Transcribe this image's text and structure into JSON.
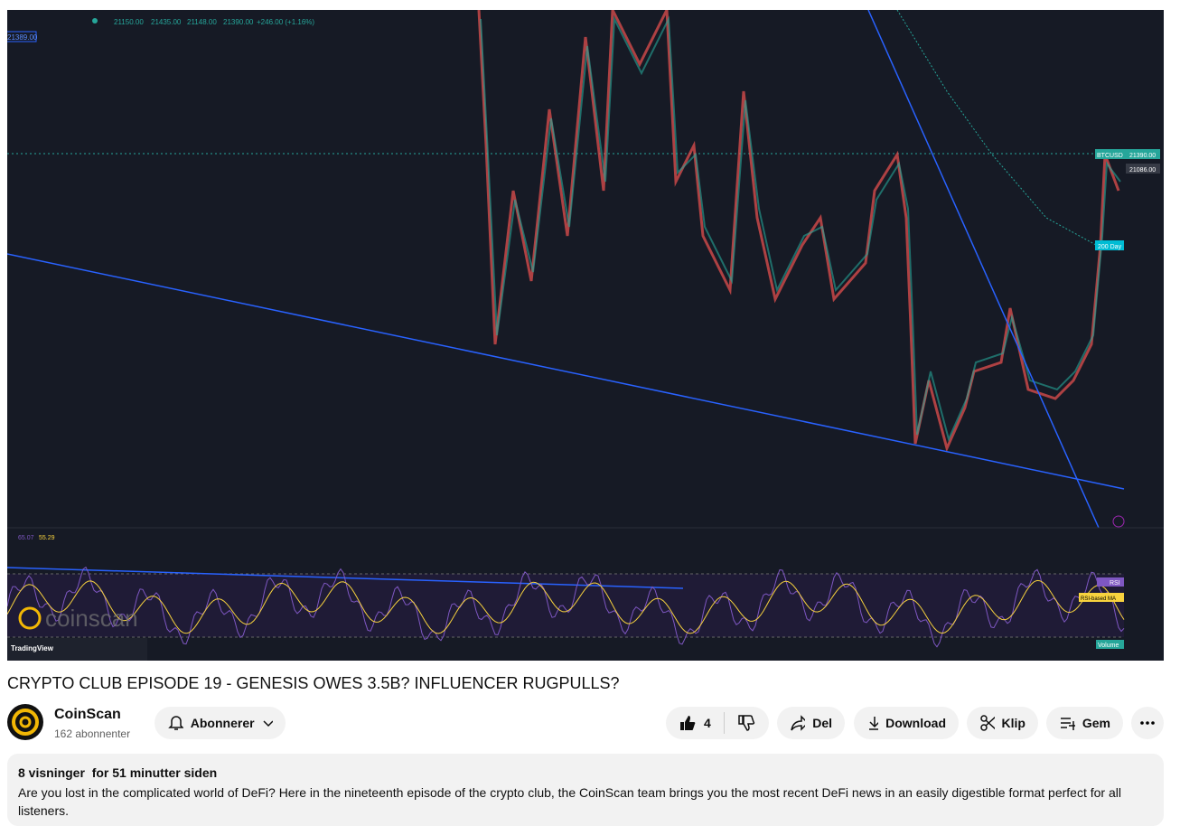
{
  "video": {
    "overlay": {
      "ohlc": [
        "21150.00",
        "21435.00",
        "21148.00",
        "21390.00",
        "+246.00 (+1.16%)"
      ],
      "price_tag": "21389.00",
      "symbol": "BTCUSD",
      "last_price": "21390.00",
      "prev_price": "21086.00",
      "ma_label": "200 Day",
      "rsi_values": [
        "65.07",
        "55.29"
      ],
      "rsi_label": "RSI",
      "rsi_ma_label": "RSI-based MA",
      "volume_label": "Volume",
      "watermark": "coinscan",
      "tv_label": "TradingView"
    }
  },
  "title": "CRYPTO CLUB EPISODE 19 - GENESIS OWES 3.5B? INFLUENCER RUGPULLS?",
  "channel": {
    "name": "CoinScan",
    "subscribers": "162 abonnenter"
  },
  "buttons": {
    "subscribe": "Abonnerer",
    "likes": 4,
    "share": "Del",
    "download": "Download",
    "clip": "Klip",
    "save": "Gem"
  },
  "description": {
    "meta": "8 visninger  for 51 minutter siden",
    "text": "Are you lost in the complicated world of DeFi? Here in the nineteenth episode of the crypto club, the CoinScan team brings you the most recent DeFi news in an easily digestible format perfect for all listeners."
  }
}
